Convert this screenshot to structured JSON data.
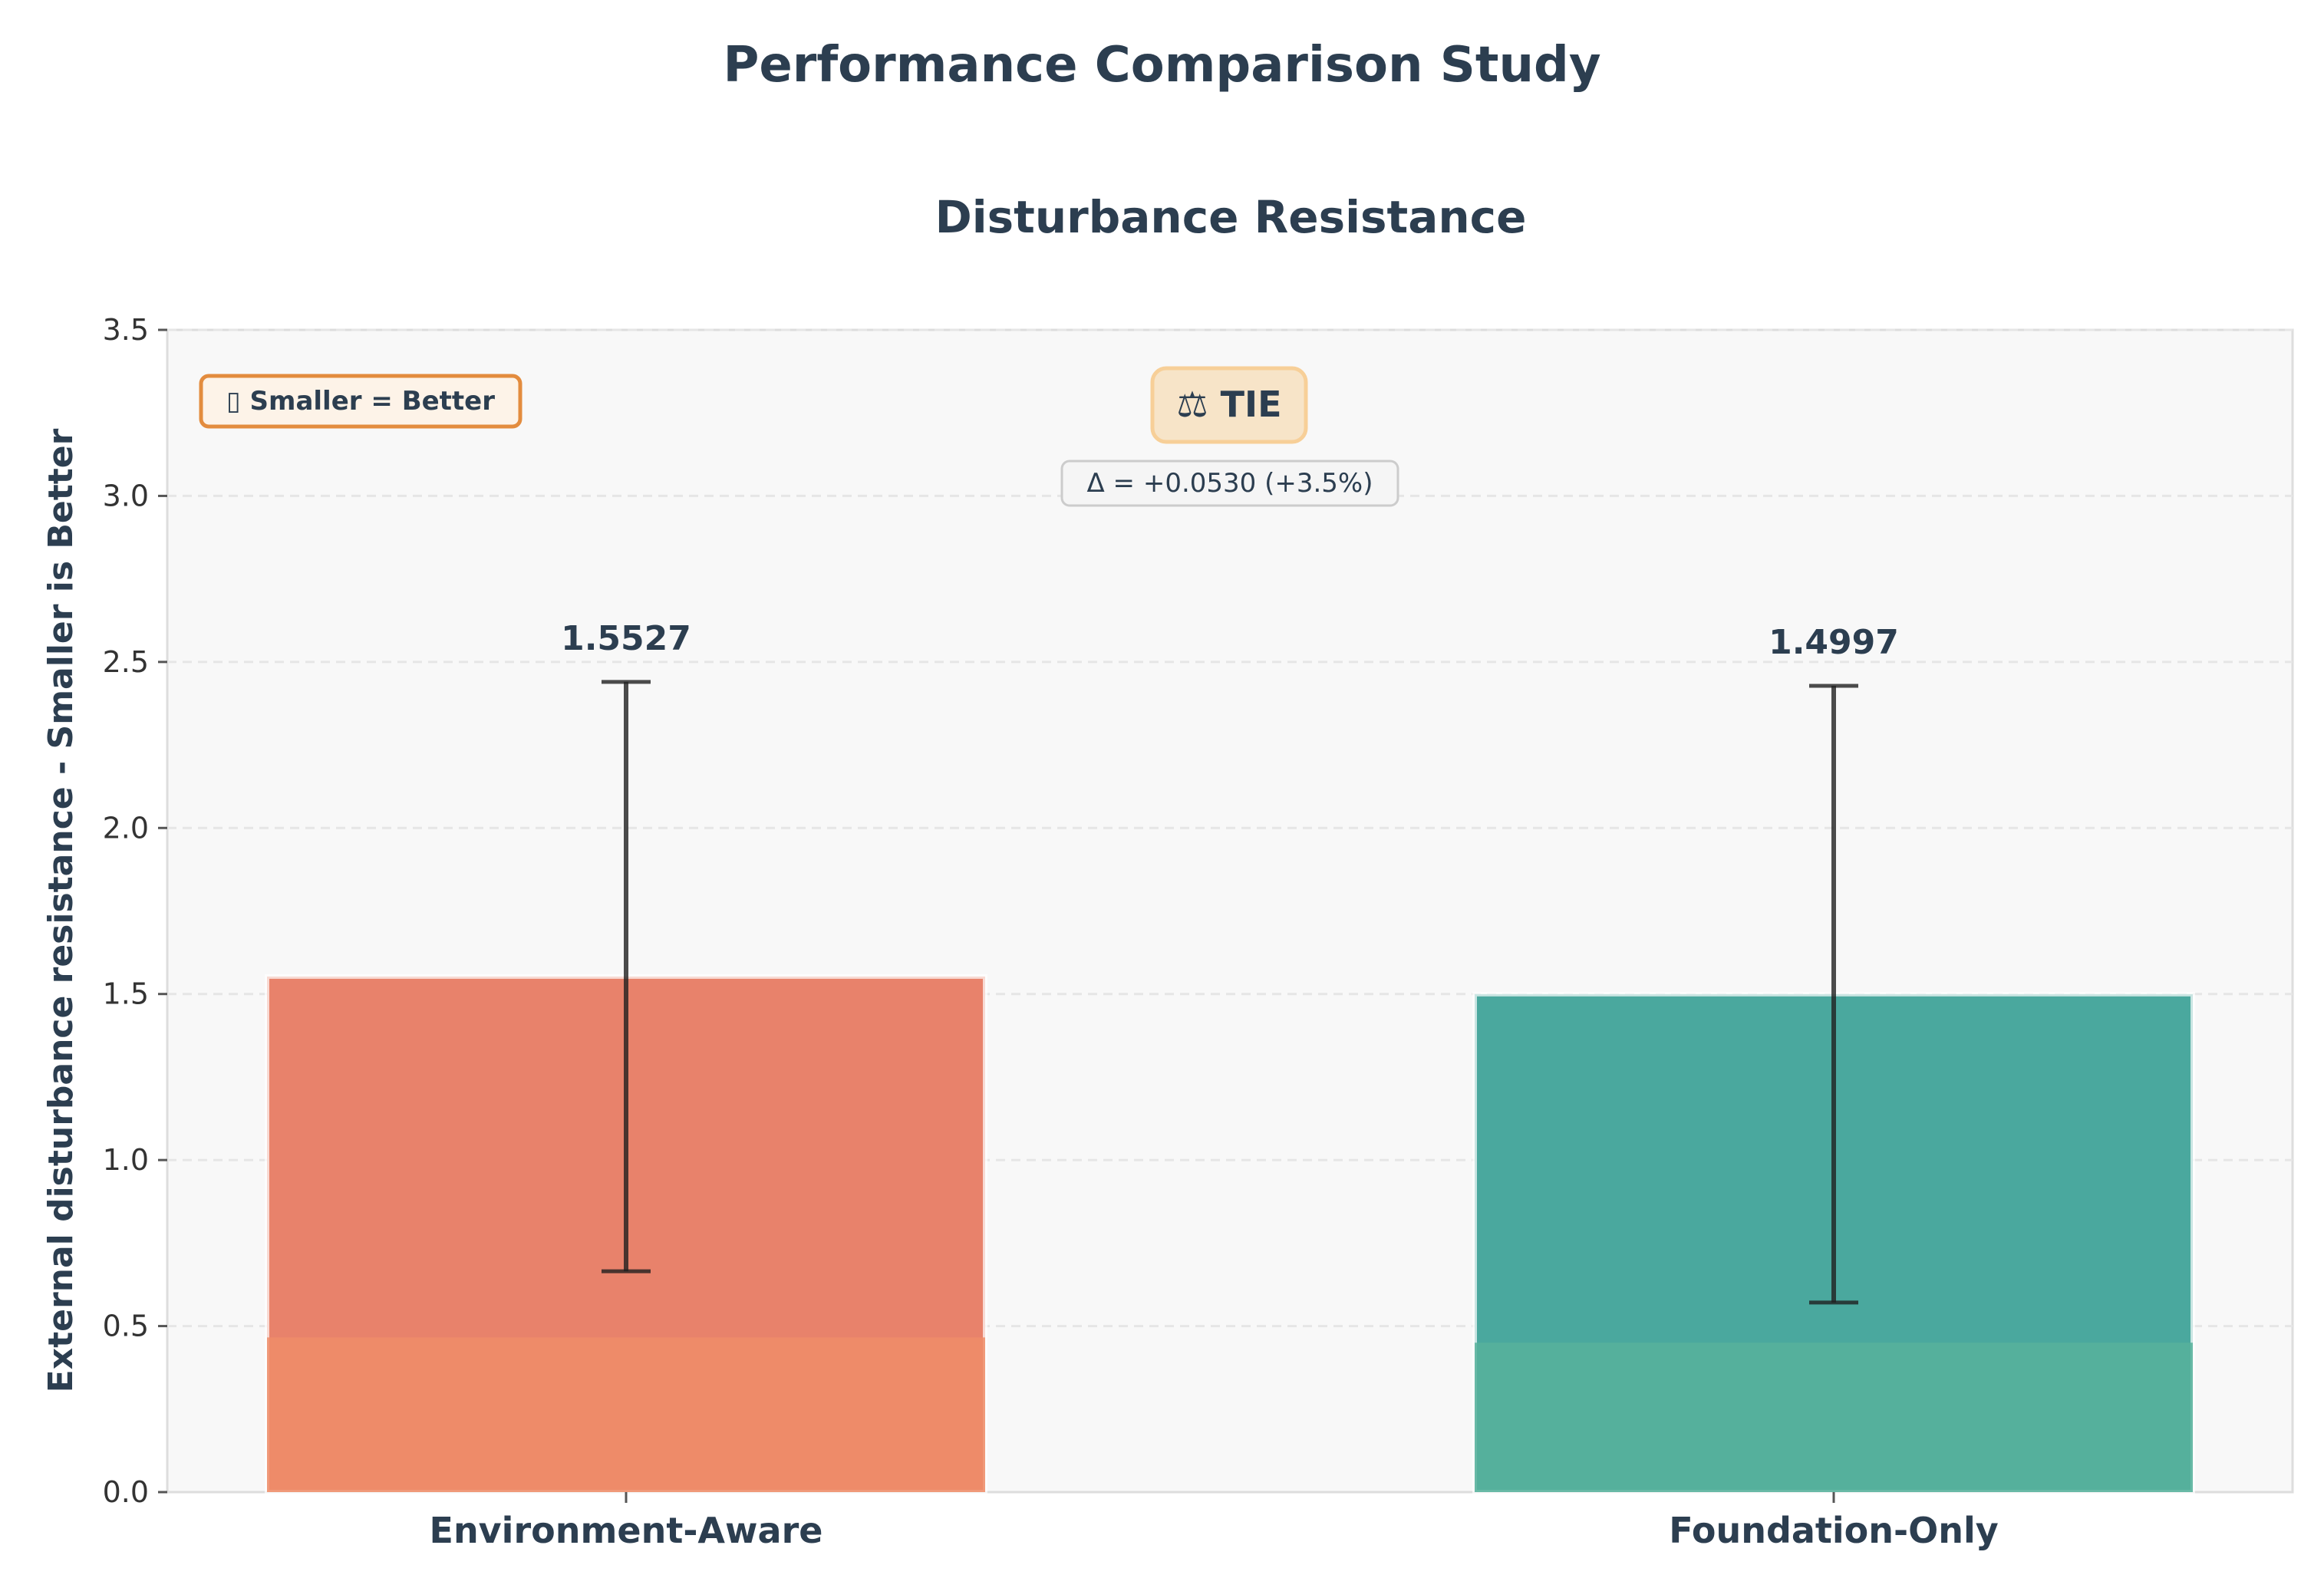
{
  "figure": {
    "suptitle": "Performance Comparison Study"
  },
  "chart_data": {
    "type": "bar",
    "title": "Disturbance Resistance",
    "xlabel": "",
    "ylabel": "External disturbance resistance - Smaller is Better",
    "ylim": [
      0,
      3.5
    ],
    "yticks": [
      "0.0",
      "0.5",
      "1.0",
      "1.5",
      "2.0",
      "2.5",
      "3.0",
      "3.5"
    ],
    "grid": true,
    "categories": [
      "Environment-Aware",
      "Foundation-Only"
    ],
    "values": [
      1.5527,
      1.4997
    ],
    "value_labels": [
      "1.5527",
      "1.4997"
    ],
    "error_low": [
      0.665,
      0.571
    ],
    "error_high": [
      2.44,
      2.428
    ],
    "colors": [
      "#e8826b",
      "#4aa89e"
    ],
    "base_colors": [
      "#ee8d68",
      "#57b29b"
    ],
    "annotations": {
      "note": "▯ Smaller = Better",
      "verdict": "⚖ TIE",
      "delta": "Δ = +0.0530 (+3.5%)"
    }
  }
}
